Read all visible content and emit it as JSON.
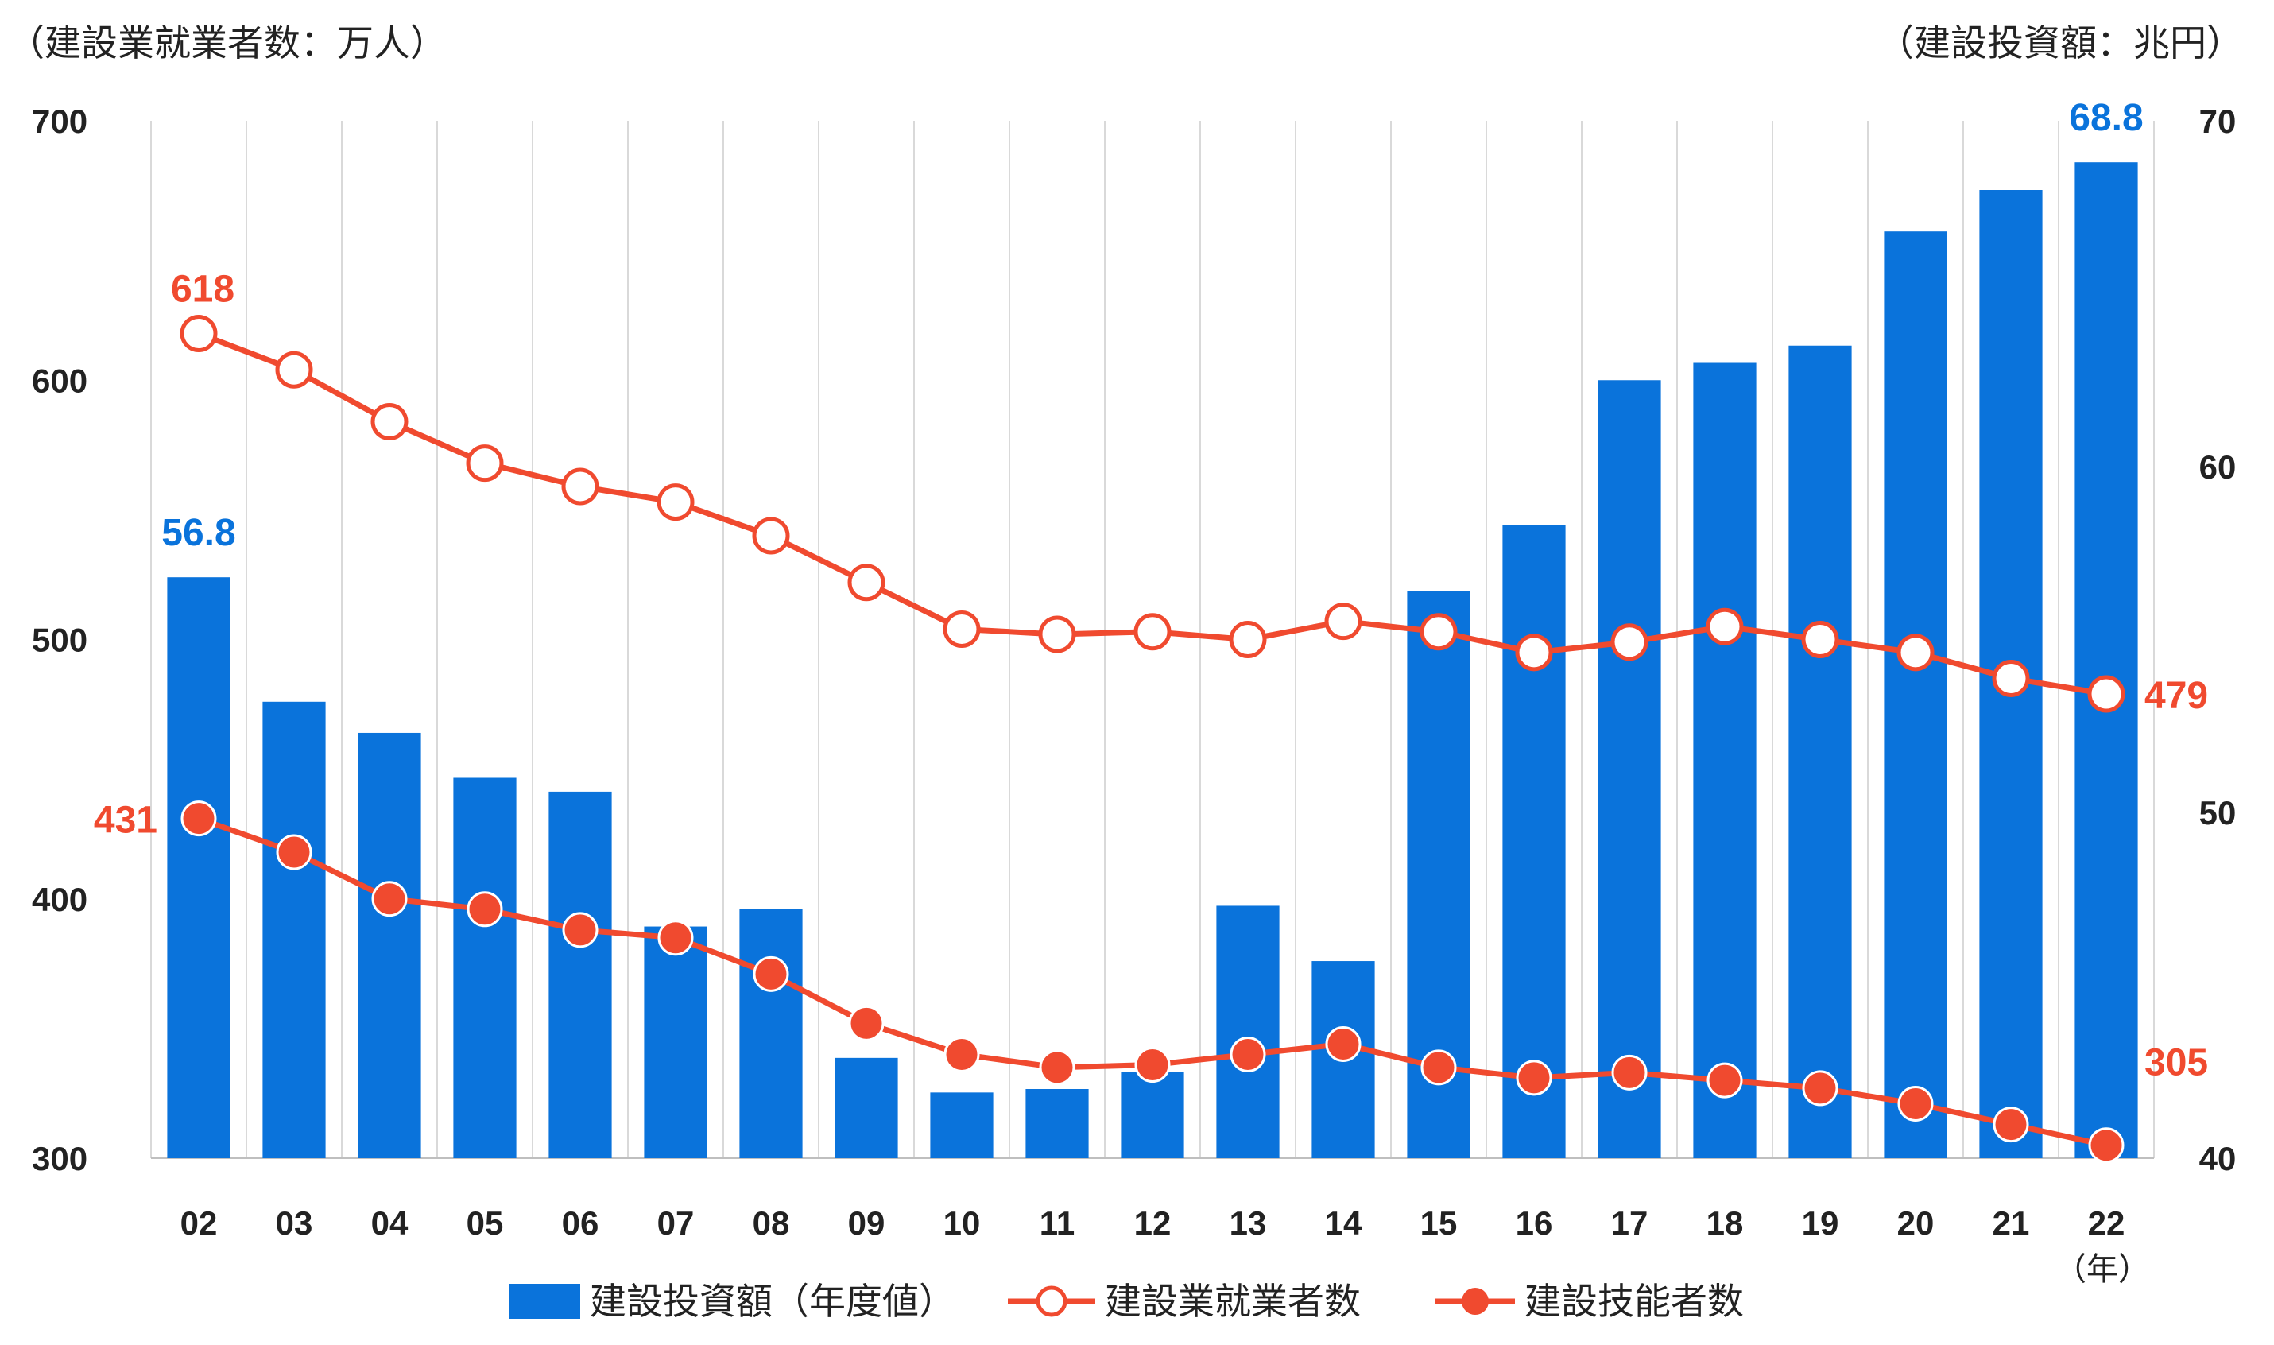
{
  "chart_data": {
    "type": "bar+line",
    "left_axis_title": "（建設業就業者数：万人）",
    "right_axis_title": "（建設投資額：兆円）",
    "x_unit": "（年）",
    "categories": [
      "02",
      "03",
      "04",
      "05",
      "06",
      "07",
      "08",
      "09",
      "10",
      "11",
      "12",
      "13",
      "14",
      "15",
      "16",
      "17",
      "18",
      "19",
      "20",
      "21",
      "22"
    ],
    "left_axis": {
      "ylim": [
        300,
        700
      ],
      "ticks": [
        300,
        400,
        500,
        600,
        700
      ],
      "tick_labels": [
        "300",
        "400",
        "500",
        "600",
        "700"
      ]
    },
    "right_axis": {
      "ylim": [
        40,
        70
      ],
      "ticks": [
        40,
        50,
        60,
        70
      ],
      "tick_labels": [
        "40",
        "50",
        "60",
        "70"
      ]
    },
    "grid": {
      "vertical": true,
      "horizontal": false
    },
    "legend_position": "bottom",
    "series": [
      {
        "name": "建設投資額（年度値）",
        "kind": "bar",
        "axis": "right",
        "color": "#0a73db",
        "values": [
          56.8,
          53.2,
          52.3,
          51.0,
          50.6,
          46.7,
          47.2,
          42.9,
          41.9,
          42.0,
          42.5,
          47.3,
          45.7,
          56.4,
          58.3,
          62.5,
          63.0,
          63.5,
          66.8,
          68.0,
          68.8
        ],
        "labels": [
          {
            "index": 0,
            "text": "56.8"
          },
          {
            "index": 20,
            "text": "68.8"
          }
        ]
      },
      {
        "name": "建設業就業者数",
        "kind": "line",
        "marker": "hollow",
        "axis": "left",
        "color": "#f04a2f",
        "values": [
          618,
          604,
          584,
          568,
          559,
          553,
          540,
          522,
          504,
          502,
          503,
          500,
          507,
          503,
          495,
          499,
          505,
          500,
          495,
          485,
          479
        ],
        "labels": [
          {
            "index": 0,
            "text": "618"
          },
          {
            "index": 20,
            "text": "479"
          }
        ]
      },
      {
        "name": "建設技能者数",
        "kind": "line",
        "marker": "filled",
        "axis": "left",
        "color": "#f04a2f",
        "values": [
          431,
          418,
          400,
          396,
          388,
          385,
          371,
          352,
          340,
          335,
          336,
          340,
          344,
          335,
          331,
          333,
          330,
          327,
          321,
          313,
          305
        ],
        "labels": [
          {
            "index": 0,
            "text": "431"
          },
          {
            "index": 20,
            "text": "305"
          }
        ]
      }
    ]
  }
}
